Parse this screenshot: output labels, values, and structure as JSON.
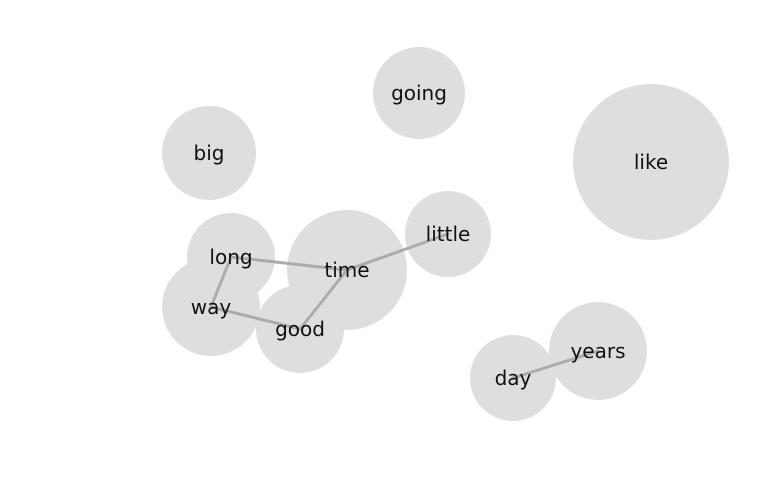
{
  "graph": {
    "colors": {
      "node_fill": "#dedede",
      "link_stroke": "#ababab",
      "label_text": "#111111",
      "background": "#ffffff"
    },
    "nodes": [
      {
        "id": "going",
        "label": "going"
      },
      {
        "id": "big",
        "label": "big"
      },
      {
        "id": "like",
        "label": "like"
      },
      {
        "id": "long",
        "label": "long"
      },
      {
        "id": "way",
        "label": "way"
      },
      {
        "id": "time",
        "label": "time"
      },
      {
        "id": "good",
        "label": "good"
      },
      {
        "id": "little",
        "label": "little"
      },
      {
        "id": "years",
        "label": "years"
      },
      {
        "id": "day",
        "label": "day"
      }
    ],
    "links": [
      {
        "source": "long",
        "target": "time"
      },
      {
        "source": "long",
        "target": "way"
      },
      {
        "source": "way",
        "target": "good"
      },
      {
        "source": "good",
        "target": "time"
      },
      {
        "source": "time",
        "target": "little"
      },
      {
        "source": "day",
        "target": "years"
      }
    ]
  }
}
